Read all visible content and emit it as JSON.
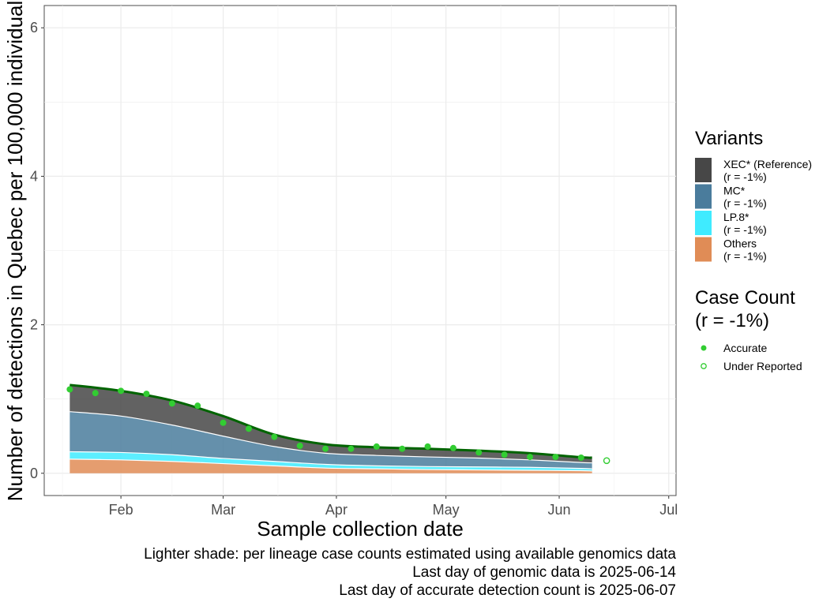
{
  "chart_data": {
    "type": "area",
    "xlabel": "Sample collection date",
    "ylabel": "Number of detections in Quebec per 100,000 individual",
    "xlim": [
      "2025-01-11",
      "2025-07-03"
    ],
    "ylim": [
      -0.3,
      6.3
    ],
    "x_ticks": [
      {
        "date": "2025-02-01",
        "label": "Feb"
      },
      {
        "date": "2025-03-01",
        "label": "Mar"
      },
      {
        "date": "2025-04-01",
        "label": "Apr"
      },
      {
        "date": "2025-05-01",
        "label": "May"
      },
      {
        "date": "2025-06-01",
        "label": "Jun"
      },
      {
        "date": "2025-07-01",
        "label": "Jul"
      }
    ],
    "y_ticks": [
      0,
      2,
      4,
      6
    ],
    "grid": true,
    "x": [
      "2025-01-18",
      "2025-02-01",
      "2025-02-15",
      "2025-03-01",
      "2025-03-15",
      "2025-03-29",
      "2025-04-12",
      "2025-04-26",
      "2025-05-10",
      "2025-05-24",
      "2025-06-07",
      "2025-06-10"
    ],
    "stack_order": [
      "Others",
      "LP.8*",
      "MC*",
      "XEC* (Reference)"
    ],
    "series": [
      {
        "name": "Others",
        "color": "#E08C56",
        "values": [
          0.19,
          0.18,
          0.16,
          0.13,
          0.1,
          0.07,
          0.06,
          0.05,
          0.045,
          0.04,
          0.035,
          0.03
        ]
      },
      {
        "name": "LP.8*",
        "color": "#3FEBFF",
        "values": [
          0.1,
          0.1,
          0.09,
          0.07,
          0.06,
          0.05,
          0.04,
          0.04,
          0.04,
          0.04,
          0.03,
          0.03
        ]
      },
      {
        "name": "MC*",
        "color": "#4A7C9C",
        "values": [
          0.54,
          0.49,
          0.4,
          0.3,
          0.2,
          0.15,
          0.14,
          0.13,
          0.12,
          0.1,
          0.08,
          0.08
        ]
      },
      {
        "name": "XEC* (Reference)",
        "color": "#474747",
        "values": [
          0.36,
          0.34,
          0.33,
          0.27,
          0.16,
          0.12,
          0.11,
          0.11,
          0.1,
          0.09,
          0.07,
          0.07
        ]
      }
    ],
    "total_line": {
      "color": "#006400",
      "values": [
        1.19,
        1.11,
        0.98,
        0.77,
        0.52,
        0.39,
        0.35,
        0.33,
        0.305,
        0.27,
        0.215,
        0.21
      ]
    },
    "case_count_points": {
      "accurate": {
        "x": [
          "2025-01-18",
          "2025-01-25",
          "2025-02-01",
          "2025-02-08",
          "2025-02-15",
          "2025-02-22",
          "2025-03-01",
          "2025-03-08",
          "2025-03-15",
          "2025-03-22",
          "2025-03-29",
          "2025-04-05",
          "2025-04-12",
          "2025-04-19",
          "2025-04-26",
          "2025-05-03",
          "2025-05-10",
          "2025-05-17",
          "2025-05-24",
          "2025-05-31",
          "2025-06-07"
        ],
        "y": [
          1.13,
          1.08,
          1.11,
          1.07,
          0.94,
          0.91,
          0.68,
          0.6,
          0.49,
          0.37,
          0.33,
          0.33,
          0.36,
          0.33,
          0.36,
          0.34,
          0.28,
          0.25,
          0.22,
          0.22,
          0.21
        ]
      },
      "under_reported": {
        "x": [
          "2025-06-14"
        ],
        "y": [
          0.17
        ]
      },
      "color": "#32CD32"
    }
  },
  "legend_variants": {
    "title": "Variants",
    "items": [
      {
        "name": "XEC* (Reference)",
        "rate": "(r = -1%)",
        "color": "#474747"
      },
      {
        "name": "MC*",
        "rate": "(r = -1%)",
        "color": "#4A7C9C"
      },
      {
        "name": "LP.8*",
        "rate": "(r = -1%)",
        "color": "#3FEBFF"
      },
      {
        "name": "Others",
        "rate": "(r = -1%)",
        "color": "#E08C56"
      }
    ]
  },
  "legend_cases": {
    "title": "Case Count",
    "subtitle": "(r = -1%)",
    "items": [
      {
        "name": "Accurate",
        "shape": "filled-circle"
      },
      {
        "name": "Under Reported",
        "shape": "open-circle"
      }
    ]
  },
  "captions": [
    "Lighter shade: per lineage case counts estimated using available genomics data",
    "Last day of genomic data is 2025-06-14",
    "Last day of accurate detection count is 2025-06-07"
  ]
}
